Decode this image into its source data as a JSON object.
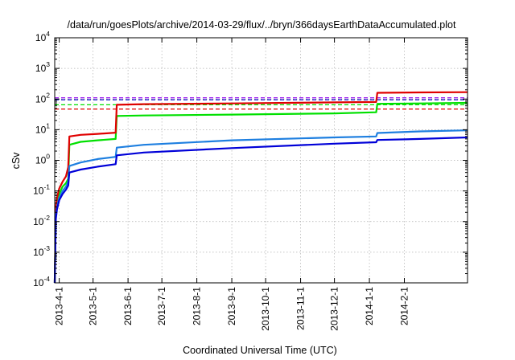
{
  "chart_data": {
    "type": "line",
    "title": "/data/run/goesPlots/archive/2014-03-29/flux/../bryn/366daysEarthDataAccumulated.plot",
    "xlabel": "Coordinated Universal Time (UTC)",
    "ylabel": "cSv",
    "x_range": [
      "2013-03-28",
      "2014-03-29"
    ],
    "y_range": [
      0.0001,
      10000
    ],
    "y_scale": "log",
    "grid": true,
    "x_ticks": [
      "2013-4-1",
      "2013-5-1",
      "2013-6-1",
      "2013-7-1",
      "2013-8-1",
      "2013-9-1",
      "2013-10-1",
      "2013-11-1",
      "2013-12-1",
      "2014-1-1",
      "2014-2-1"
    ],
    "y_ticks": [
      {
        "value": 0.0001,
        "base": "10",
        "exp": "-4"
      },
      {
        "value": 0.001,
        "base": "10",
        "exp": "-3"
      },
      {
        "value": 0.01,
        "base": "10",
        "exp": "-2"
      },
      {
        "value": 0.1,
        "base": "10",
        "exp": "-1"
      },
      {
        "value": 1,
        "base": "10",
        "exp": "0"
      },
      {
        "value": 10,
        "base": "10",
        "exp": "1"
      },
      {
        "value": 100,
        "base": "10",
        "exp": "2"
      },
      {
        "value": 1000,
        "base": "10",
        "exp": "3"
      },
      {
        "value": 10000,
        "base": "10",
        "exp": "4"
      }
    ],
    "thresholds": [
      {
        "value": 110,
        "color": "#a020f0"
      },
      {
        "value": 95,
        "color": "#0000c0"
      },
      {
        "value": 65,
        "color": "#00e000"
      },
      {
        "value": 47,
        "color": "#e00000"
      }
    ],
    "series": [
      {
        "color": "#00e000",
        "x": [
          "2013-03-28",
          "2013-03-29",
          "2013-03-30",
          "2013-04-01",
          "2013-04-04",
          "2013-04-07",
          "2013-04-09",
          "2013-04-10",
          "2013-04-20",
          "2013-05-05",
          "2013-05-21",
          "2013-05-22",
          "2013-06-15",
          "2013-09-01",
          "2013-12-01",
          "2014-01-07",
          "2014-01-08",
          "2014-02-15",
          "2014-03-29"
        ],
        "y": [
          0.0001,
          0.02,
          0.04,
          0.08,
          0.14,
          0.18,
          0.25,
          3.2,
          4,
          4.5,
          5,
          28,
          29,
          31,
          34,
          37,
          70,
          72,
          75
        ]
      },
      {
        "color": "#e00000",
        "x": [
          "2013-03-28",
          "2013-03-29",
          "2013-03-30",
          "2013-04-01",
          "2013-04-04",
          "2013-04-07",
          "2013-04-09",
          "2013-04-10",
          "2013-04-20",
          "2013-05-05",
          "2013-05-21",
          "2013-05-22",
          "2013-06-15",
          "2013-09-01",
          "2013-12-01",
          "2014-01-07",
          "2014-01-08",
          "2014-02-15",
          "2014-03-29"
        ],
        "y": [
          0.0001,
          0.03,
          0.06,
          0.12,
          0.2,
          0.3,
          0.6,
          6,
          6.8,
          7.3,
          8,
          65,
          68,
          72,
          78,
          80,
          160,
          165,
          168
        ]
      },
      {
        "color": "#1e7fe0",
        "x": [
          "2013-03-28",
          "2013-03-29",
          "2013-03-30",
          "2013-04-01",
          "2013-04-04",
          "2013-04-07",
          "2013-04-09",
          "2013-04-10",
          "2013-04-20",
          "2013-05-05",
          "2013-05-21",
          "2013-05-22",
          "2013-06-15",
          "2013-09-01",
          "2013-12-01",
          "2014-01-07",
          "2014-01-08",
          "2014-02-15",
          "2014-03-29"
        ],
        "y": [
          0.0001,
          0.015,
          0.03,
          0.06,
          0.1,
          0.14,
          0.2,
          0.65,
          0.85,
          1.1,
          1.3,
          2.6,
          3.2,
          4.5,
          5.6,
          6,
          7.8,
          8.8,
          9.5
        ]
      },
      {
        "color": "#0000d8",
        "x": [
          "2013-03-28",
          "2013-03-29",
          "2013-03-30",
          "2013-04-01",
          "2013-04-04",
          "2013-04-07",
          "2013-04-09",
          "2013-04-10",
          "2013-04-20",
          "2013-05-05",
          "2013-05-21",
          "2013-05-22",
          "2013-06-15",
          "2013-09-01",
          "2013-12-01",
          "2014-01-07",
          "2014-01-08",
          "2014-02-15",
          "2014-03-29"
        ],
        "y": [
          0.0001,
          0.012,
          0.025,
          0.05,
          0.08,
          0.11,
          0.15,
          0.4,
          0.5,
          0.62,
          0.75,
          1.45,
          1.8,
          2.5,
          3.5,
          3.9,
          4.6,
          5.0,
          5.6
        ]
      }
    ]
  }
}
